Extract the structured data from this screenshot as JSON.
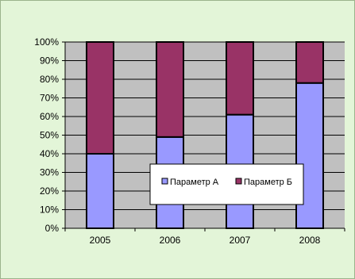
{
  "chart_data": {
    "type": "bar",
    "stacked": true,
    "percent": true,
    "categories": [
      "2005",
      "2006",
      "2007",
      "2008"
    ],
    "series": [
      {
        "name": "Параметр А",
        "values": [
          40,
          49,
          61,
          78
        ],
        "color": "#9999ff"
      },
      {
        "name": "Параметр Б",
        "values": [
          60,
          51,
          39,
          22
        ],
        "color": "#993366"
      }
    ],
    "ylim": [
      0,
      100
    ],
    "yticks": [
      "0%",
      "10%",
      "20%",
      "30%",
      "40%",
      "50%",
      "60%",
      "70%",
      "80%",
      "90%",
      "100%"
    ],
    "grid": true,
    "legend_position": "inside-lower-right",
    "plot_background": "#c0c0c0",
    "chart_background": "#e3f5d8"
  }
}
